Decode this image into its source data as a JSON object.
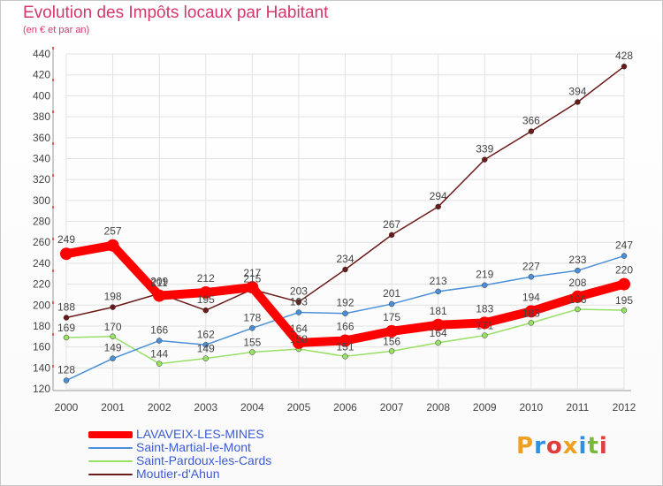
{
  "header": {
    "title": "Evolution des Impôts locaux par Habitant",
    "subtitle": "(en € et par an)"
  },
  "logo": {
    "text": "Proxiti",
    "colors": [
      "#f0a020",
      "#2f8fe0",
      "#e23c3c",
      "#f0a020",
      "#2f8fe0",
      "#7ab83c",
      "#e23c3c"
    ]
  },
  "chart_data": {
    "type": "line",
    "title": "Evolution des Impôts locaux par Habitant",
    "subtitle": "(en € et par an)",
    "xlabel": "",
    "ylabel": "",
    "x": [
      "2000",
      "2001",
      "2002",
      "2003",
      "2004",
      "2005",
      "2006",
      "2007",
      "2008",
      "2009",
      "2010",
      "2011",
      "2012"
    ],
    "ylim": [
      120,
      440
    ],
    "yticks": [
      120,
      140,
      160,
      180,
      200,
      220,
      240,
      260,
      280,
      300,
      320,
      340,
      360,
      380,
      400,
      420,
      440
    ],
    "grid": true,
    "legend_position": "bottom-left",
    "series": [
      {
        "name": "LAVAVEIX-LES-MINES",
        "color": "#ff0000",
        "values": [
          249,
          257,
          209,
          212,
          217,
          164,
          166,
          175,
          181,
          183,
          194,
          208,
          220
        ]
      },
      {
        "name": "Saint-Martial-le-Mont",
        "color": "#4a90d9",
        "values": [
          128,
          149,
          166,
          162,
          178,
          193,
          192,
          201,
          213,
          219,
          227,
          233,
          247
        ]
      },
      {
        "name": "Saint-Pardoux-les-Cards",
        "color": "#99e066",
        "values": [
          169,
          170,
          144,
          149,
          155,
          158,
          151,
          156,
          164,
          171,
          183,
          196,
          195
        ]
      },
      {
        "name": "Moutier-d'Ahun",
        "color": "#6b1a1a",
        "values": [
          188,
          198,
          211,
          195,
          215,
          203,
          234,
          267,
          294,
          339,
          366,
          394,
          428
        ]
      }
    ],
    "point_labels": {
      "LAVAVEIX-LES-MINES": [
        "249",
        "257",
        "209",
        "212",
        "217",
        "164",
        "166",
        "175",
        "181",
        "183",
        "194",
        "208",
        "220"
      ],
      "Saint-Martial-le-Mont": [
        "128",
        "149",
        "166",
        "162",
        "178",
        "193",
        "192",
        "201",
        "213",
        "219",
        "227",
        "233",
        "247"
      ],
      "Saint-Pardoux-les-Cards": [
        "169",
        "170",
        "144",
        "149",
        "155",
        "158",
        "151",
        "156",
        "164",
        "171",
        "183",
        "196",
        "195"
      ],
      "Moutier-d'Ahun": [
        "188",
        "198",
        "211",
        "195",
        "215",
        "203",
        "234",
        "267",
        "294",
        "339",
        "366",
        "394",
        "428"
      ]
    }
  }
}
